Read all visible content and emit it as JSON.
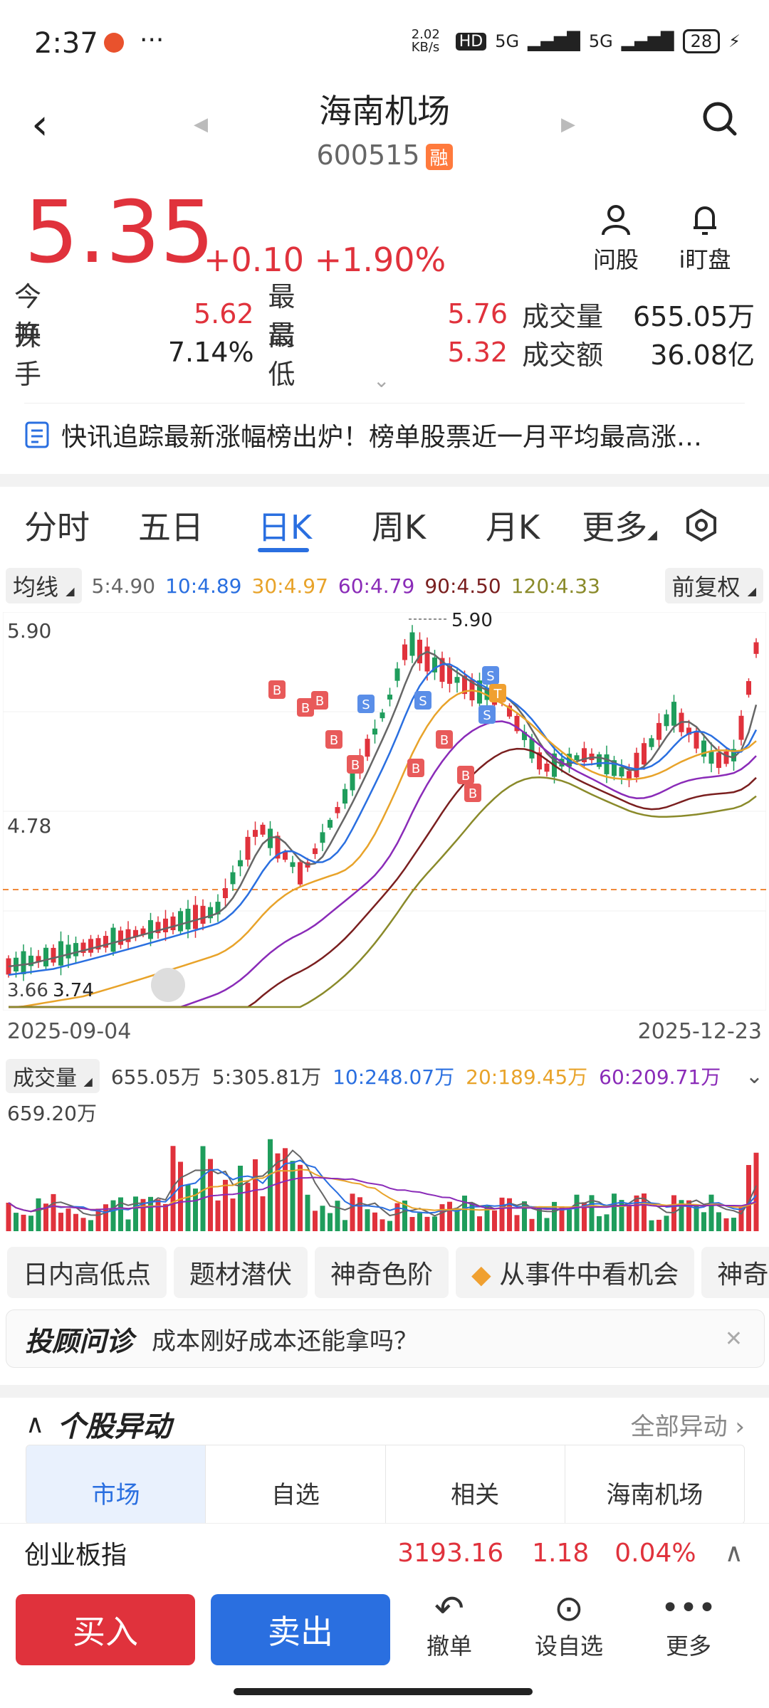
{
  "status_bar": {
    "time": "2:37",
    "net_speed": "2.02 KB/s",
    "hd": "HD",
    "sig1": "5G",
    "sig2": "5G",
    "battery": "28"
  },
  "header": {
    "title": "海南机场",
    "code": "600515",
    "badge": "融"
  },
  "quote": {
    "price": "5.35",
    "change": "+0.10",
    "change_pct": "+1.90%"
  },
  "actions": {
    "ask_label": "问股",
    "watch_label": "i盯盘"
  },
  "stats": {
    "row1": {
      "l1": "今开",
      "v1": "5.62",
      "l2": "最高",
      "v2": "5.76",
      "l3": "成交量",
      "v3": "655.05万"
    },
    "row2": {
      "l1": "换手",
      "v1": "7.14%",
      "l2": "最低",
      "v2": "5.32",
      "l3": "成交额",
      "v3": "36.08亿"
    }
  },
  "news": {
    "text": "快讯追踪最新涨幅榜出炉！榜单股票近一月平均最高涨…"
  },
  "tabs": [
    "分时",
    "五日",
    "日K",
    "周K",
    "月K",
    "更多"
  ],
  "ma": {
    "label": "均线",
    "ma5": "5:4.90",
    "ma10": "10:4.89",
    "ma30": "30:4.97",
    "ma60": "60:4.79",
    "ma90": "90:4.50",
    "ma120": "120:4.33",
    "fq": "前复权"
  },
  "colors": {
    "ma5": "#666666",
    "ma10": "#2a6fe0",
    "ma30": "#e8a32a",
    "ma60": "#8a2bb8",
    "ma90": "#7a1f1f",
    "ma120": "#8a8a2a",
    "up": "#e0323c",
    "down": "#1f9d5c"
  },
  "chart": {
    "y_high": "5.90",
    "y_mid": "4.78",
    "y_low": "3.66",
    "low_mark": "3.74",
    "high_mark": "5.90",
    "x_start": "2025-09-04",
    "x_end": "2025-12-23"
  },
  "volume": {
    "label": "成交量",
    "total": "655.05万",
    "v5": "5:305.81万",
    "v10": "10:248.07万",
    "v20": "20:189.45万",
    "v60": "60:209.71万",
    "ymax": "659.20万"
  },
  "tags": [
    "日内高低点",
    "题材潜伏",
    "神奇色阶",
    "从事件中看机会",
    "神奇"
  ],
  "advise": {
    "brand": "投顾问诊",
    "text": "成本刚好成本还能拿吗？"
  },
  "yidong": {
    "title": "个股异动",
    "more": "全部异动"
  },
  "segments": [
    "市场",
    "自选",
    "相关",
    "海南机场"
  ],
  "index": {
    "name": "创业板指",
    "value": "3193.16",
    "chg": "1.18",
    "pct": "0.04%"
  },
  "bottom": {
    "buy": "买入",
    "sell": "卖出",
    "cancel": "撤单",
    "fav": "设自选",
    "more": "更多"
  }
}
